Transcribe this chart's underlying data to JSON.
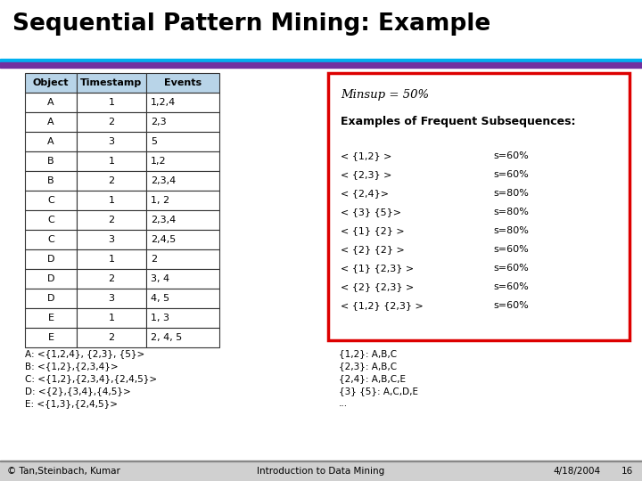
{
  "title": "Sequential Pattern Mining: Example",
  "header_bar1_color": "#7030a0",
  "header_bar2_color": "#00b0f0",
  "table_headers": [
    "Object",
    "Timestamp",
    "Events"
  ],
  "table_data": [
    [
      "A",
      "1",
      "1,2,4"
    ],
    [
      "A",
      "2",
      "2,3"
    ],
    [
      "A",
      "3",
      "5"
    ],
    [
      "B",
      "1",
      "1,2"
    ],
    [
      "B",
      "2",
      "2,3,4"
    ],
    [
      "C",
      "1",
      "1, 2"
    ],
    [
      "C",
      "2",
      "2,3,4"
    ],
    [
      "C",
      "3",
      "2,4,5"
    ],
    [
      "D",
      "1",
      "2"
    ],
    [
      "D",
      "2",
      "3, 4"
    ],
    [
      "D",
      "3",
      "4, 5"
    ],
    [
      "E",
      "1",
      "1, 3"
    ],
    [
      "E",
      "2",
      "2, 4, 5"
    ]
  ],
  "minsup_text": "Minsup = 50%",
  "examples_header": "Examples of Frequent Subsequences:",
  "subsequences": [
    [
      "< {1,2} >",
      "s=60%"
    ],
    [
      "< {2,3} >",
      "s=60%"
    ],
    [
      "< {2,4}>",
      "s=80%"
    ],
    [
      "< {3} {5}>",
      "s=80%"
    ],
    [
      "< {1} {2} >",
      "s=80%"
    ],
    [
      "< {2} {2} >",
      "s=60%"
    ],
    [
      "< {1} {2,3} >",
      "s=60%"
    ],
    [
      "< {2} {2,3} >",
      "s=60%"
    ],
    [
      "< {1,2} {2,3} >",
      "s=60%"
    ]
  ],
  "bottom_left_lines": [
    "A: <{1,2,4}, {2,3}, {5}>",
    "B: <{1,2},{2,3,4}>",
    "C: <{1,2},{2,3,4},{2,4,5}>",
    "D: <{2},{3,4},{4,5}>",
    "E: <{1,3},{2,4,5}>"
  ],
  "bottom_right_lines": [
    "{1,2}: A,B,C",
    "{2,3}: A,B,C",
    "{2,4}: A,B,C,E",
    "{3} {5}: A,C,D,E",
    "..."
  ],
  "footer_left": "© Tan,Steinbach, Kumar",
  "footer_center": "Introduction to Data Mining",
  "footer_right": "4/18/2004",
  "footer_page": "16",
  "bg_color": "#ffffff",
  "table_header_fill": "#b8d4e8",
  "table_border_color": "#333333",
  "red_box_color": "#dd0000",
  "footer_bg": "#d0d0d0"
}
